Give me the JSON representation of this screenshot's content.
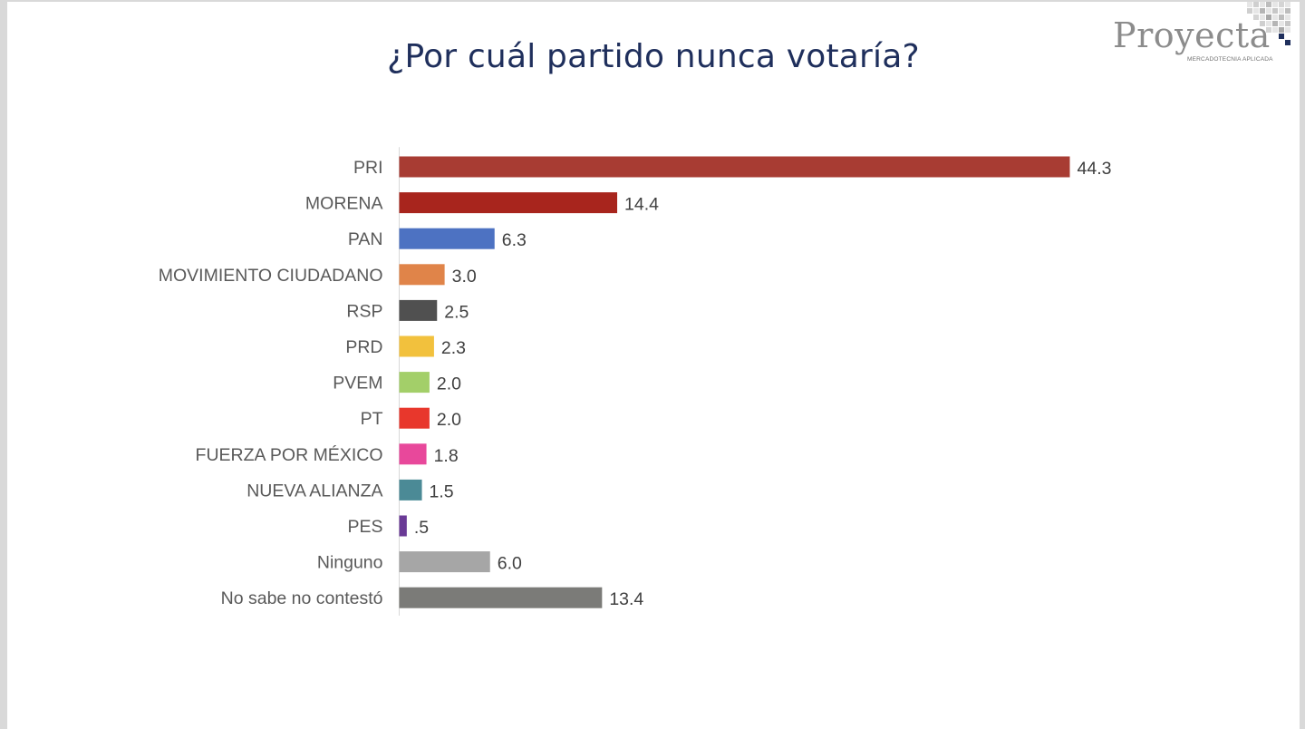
{
  "title": "¿Por cuál partido nunca votaría?",
  "logo": {
    "name": "Proyecta",
    "tagline": "MERCADOTECNIA APLICADA"
  },
  "chart_data": {
    "type": "bar",
    "orientation": "horizontal",
    "title": "¿Por cuál partido nunca votaría?",
    "xlabel": "",
    "ylabel": "",
    "xlim": [
      0,
      44.3
    ],
    "grid": false,
    "legend": "none",
    "categories": [
      "PRI",
      "MORENA",
      "PAN",
      "MOVIMIENTO CIUDADANO",
      "RSP",
      "PRD",
      "PVEM",
      "PT",
      "FUERZA POR MÉXICO",
      "NUEVA ALIANZA",
      "PES",
      "Ninguno",
      "No sabe no contestó"
    ],
    "values": [
      44.3,
      14.4,
      6.3,
      3.0,
      2.5,
      2.3,
      2.0,
      2.0,
      1.8,
      1.5,
      0.5,
      6.0,
      13.4
    ],
    "value_labels": [
      "44.3",
      "14.4",
      "6.3",
      "3.0",
      "2.5",
      "2.3",
      "2.0",
      "2.0",
      "1.8",
      "1.5",
      ".5",
      "6.0",
      "13.4"
    ],
    "colors": [
      "#a83c33",
      "#a8251d",
      "#4d72c2",
      "#e08449",
      "#505050",
      "#f2c13d",
      "#a3cf69",
      "#e8372c",
      "#e8489b",
      "#4b8a96",
      "#6a3a96",
      "#a6a6a6",
      "#7b7b78"
    ]
  }
}
